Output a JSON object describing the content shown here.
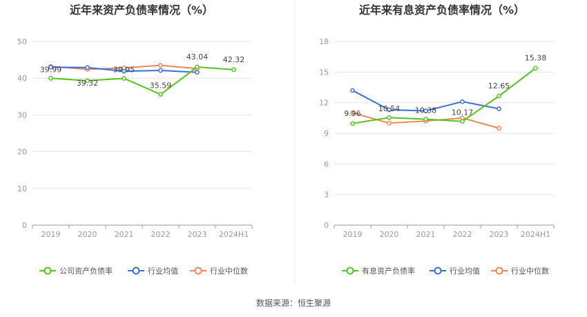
{
  "source": "数据来源：恒生聚源",
  "chart_data": [
    {
      "type": "line",
      "title": "近年来资产负债率情况（%）",
      "categories": [
        "2019",
        "2020",
        "2021",
        "2022",
        "2023",
        "2024H1"
      ],
      "ylim": [
        0,
        50
      ],
      "yticks": [
        0,
        10,
        20,
        30,
        40,
        50
      ],
      "grid": true,
      "legend_position": "bottom",
      "series": [
        {
          "name": "公司资产负债率",
          "color": "#52c41a",
          "values": [
            39.99,
            39.32,
            39.95,
            35.59,
            43.04,
            42.32
          ],
          "labels": [
            "39.99",
            "39.32",
            "39.95",
            "35.59",
            "43.04",
            "42.32"
          ]
        },
        {
          "name": "行业均值",
          "color": "#3a6fd8",
          "values": [
            43.0,
            42.9,
            41.9,
            42.1,
            41.6,
            null
          ]
        },
        {
          "name": "行业中位数",
          "color": "#f0845b",
          "values": [
            43.2,
            42.4,
            42.8,
            43.5,
            42.6,
            null
          ]
        }
      ]
    },
    {
      "type": "line",
      "title": "近年来有息资产负债率情况（%）",
      "categories": [
        "2019",
        "2020",
        "2021",
        "2022",
        "2023",
        "2024H1"
      ],
      "ylim": [
        0,
        18
      ],
      "yticks": [
        0,
        3,
        6,
        9,
        12,
        15,
        18
      ],
      "grid": true,
      "legend_position": "bottom",
      "series": [
        {
          "name": "有息资产负债率",
          "color": "#52c41a",
          "values": [
            9.96,
            10.54,
            10.38,
            10.17,
            12.65,
            15.38
          ],
          "labels": [
            "9.96",
            "10.54",
            "10.38",
            "10.17",
            "12.65",
            "15.38"
          ]
        },
        {
          "name": "行业均值",
          "color": "#3a6fd8",
          "values": [
            13.2,
            11.3,
            11.2,
            12.1,
            11.4,
            null
          ]
        },
        {
          "name": "行业中位数",
          "color": "#f0845b",
          "values": [
            11.0,
            10.0,
            10.2,
            10.5,
            9.5,
            null
          ]
        }
      ]
    }
  ]
}
